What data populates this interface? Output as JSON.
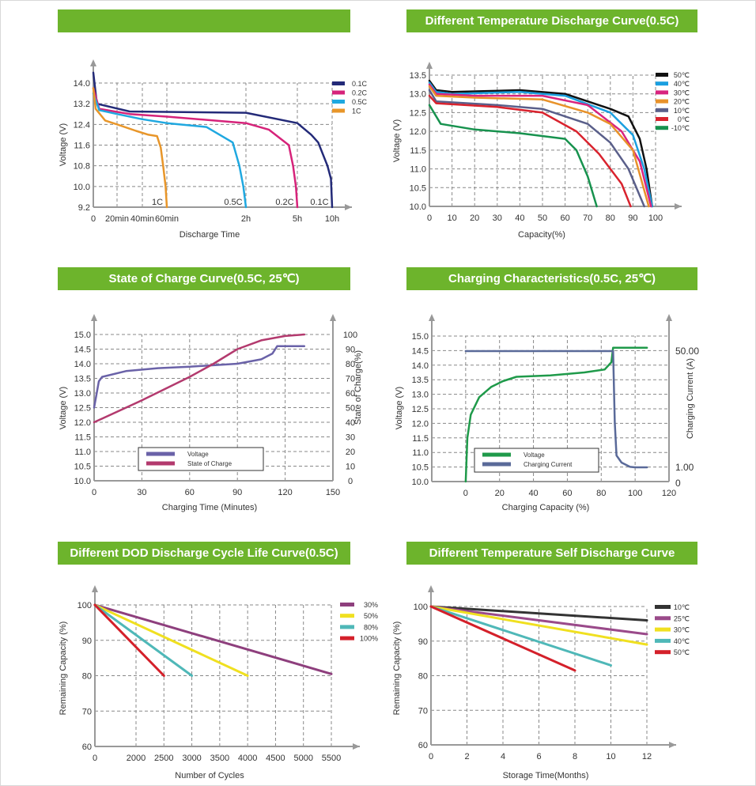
{
  "chart_data": [
    {
      "type": "line",
      "title": "",
      "xlabel": "Discharge Time",
      "ylabel": "Voltage (V)",
      "ylim": [
        9.2,
        14.0
      ],
      "x_unit": "minutes",
      "xticks": [
        {
          "v": 0,
          "label": "0"
        },
        {
          "v": 20,
          "label": "20min"
        },
        {
          "v": 40,
          "label": "40min"
        },
        {
          "v": 60,
          "label": "60min"
        },
        {
          "v": 120,
          "label": "2h"
        },
        {
          "v": 300,
          "label": "5h"
        },
        {
          "v": 600,
          "label": "10h"
        }
      ],
      "yticks": [
        9.2,
        10.0,
        10.8,
        11.6,
        12.4,
        13.2,
        14.0
      ],
      "grid": true,
      "legend": "top-right",
      "annotations": [
        {
          "text": "1C",
          "x": 60
        },
        {
          "text": "0.5C",
          "x": 120
        },
        {
          "text": "0.2C",
          "x": 300
        },
        {
          "text": "0.1C",
          "x": 600
        }
      ],
      "series": [
        {
          "name": "0.1C",
          "color": "#232a78",
          "points": [
            [
              0,
              14.4
            ],
            [
              3,
              13.2
            ],
            [
              30,
              12.9
            ],
            [
              120,
              12.85
            ],
            [
              300,
              12.45
            ],
            [
              420,
              12.0
            ],
            [
              480,
              11.7
            ],
            [
              560,
              10.8
            ],
            [
              590,
              10.3
            ],
            [
              600,
              9.2
            ]
          ]
        },
        {
          "name": "0.2C",
          "color": "#d6237a",
          "points": [
            [
              0,
              13.8
            ],
            [
              5,
              13.0
            ],
            [
              30,
              12.8
            ],
            [
              60,
              12.7
            ],
            [
              120,
              12.45
            ],
            [
              200,
              12.2
            ],
            [
              270,
              11.6
            ],
            [
              285,
              10.8
            ],
            [
              295,
              10.0
            ],
            [
              300,
              9.2
            ]
          ]
        },
        {
          "name": "0.5C",
          "color": "#1fa8e0",
          "points": [
            [
              0,
              13.6
            ],
            [
              5,
              12.95
            ],
            [
              20,
              12.8
            ],
            [
              40,
              12.6
            ],
            [
              60,
              12.45
            ],
            [
              90,
              12.3
            ],
            [
              110,
              11.7
            ],
            [
              115,
              10.8
            ],
            [
              118,
              10.0
            ],
            [
              120,
              9.2
            ]
          ]
        },
        {
          "name": "1C",
          "color": "#e8962a",
          "points": [
            [
              0,
              13.8
            ],
            [
              2,
              13.0
            ],
            [
              10,
              12.55
            ],
            [
              20,
              12.4
            ],
            [
              35,
              12.15
            ],
            [
              45,
              12.0
            ],
            [
              52,
              11.95
            ],
            [
              55,
              11.5
            ],
            [
              57,
              10.8
            ],
            [
              59,
              10.0
            ],
            [
              60,
              9.2
            ]
          ]
        }
      ]
    },
    {
      "type": "line",
      "title": "Different Temperature Discharge Curve(0.5C)",
      "xlabel": "Capacity(%)",
      "ylabel": "Voltage (V)",
      "xlim": [
        0,
        100
      ],
      "ylim": [
        10.0,
        13.5
      ],
      "xticks": [
        {
          "v": 0,
          "label": "0"
        },
        {
          "v": 10,
          "label": "10"
        },
        {
          "v": 20,
          "label": "20"
        },
        {
          "v": 30,
          "label": "30"
        },
        {
          "v": 40,
          "label": "40"
        },
        {
          "v": 50,
          "label": "50"
        },
        {
          "v": 60,
          "label": "60"
        },
        {
          "v": 70,
          "label": "70"
        },
        {
          "v": 80,
          "label": "80"
        },
        {
          "v": 90,
          "label": "90"
        },
        {
          "v": 100,
          "label": "100"
        }
      ],
      "yticks": [
        10.0,
        10.5,
        11.0,
        11.5,
        12.0,
        12.5,
        13.0,
        13.5
      ],
      "grid": true,
      "legend": "top-right",
      "series": [
        {
          "name": "50℃",
          "color": "#111111",
          "points": [
            [
              0,
              13.35
            ],
            [
              3,
              13.1
            ],
            [
              10,
              13.05
            ],
            [
              40,
              13.1
            ],
            [
              60,
              13.0
            ],
            [
              80,
              12.6
            ],
            [
              88,
              12.4
            ],
            [
              93,
              11.8
            ],
            [
              96,
              11.0
            ],
            [
              98.5,
              10.0
            ]
          ]
        },
        {
          "name": "40℃",
          "color": "#1a9fe0",
          "points": [
            [
              0,
              13.3
            ],
            [
              3,
              13.05
            ],
            [
              10,
              13.0
            ],
            [
              40,
              13.05
            ],
            [
              60,
              12.95
            ],
            [
              80,
              12.5
            ],
            [
              90,
              11.9
            ],
            [
              95,
              11.0
            ],
            [
              98.5,
              10.0
            ]
          ]
        },
        {
          "name": "30℃",
          "color": "#d8247f",
          "points": [
            [
              0,
              13.25
            ],
            [
              3,
              13.0
            ],
            [
              20,
              12.95
            ],
            [
              50,
              12.95
            ],
            [
              70,
              12.7
            ],
            [
              85,
              12.0
            ],
            [
              93,
              11.2
            ],
            [
              98,
              10.0
            ]
          ]
        },
        {
          "name": "20℃",
          "color": "#e8922a",
          "points": [
            [
              0,
              13.2
            ],
            [
              3,
              12.95
            ],
            [
              20,
              12.9
            ],
            [
              50,
              12.85
            ],
            [
              70,
              12.5
            ],
            [
              80,
              12.2
            ],
            [
              90,
              11.5
            ],
            [
              97,
              10.0
            ]
          ]
        },
        {
          "name": "10℃",
          "color": "#5a5f8a",
          "points": [
            [
              0,
              13.1
            ],
            [
              3,
              12.8
            ],
            [
              30,
              12.7
            ],
            [
              50,
              12.6
            ],
            [
              70,
              12.2
            ],
            [
              80,
              11.7
            ],
            [
              88,
              11.0
            ],
            [
              95,
              10.0
            ]
          ]
        },
        {
          "name": "0℃",
          "color": "#d9232e",
          "points": [
            [
              0,
              12.95
            ],
            [
              3,
              12.75
            ],
            [
              30,
              12.65
            ],
            [
              50,
              12.5
            ],
            [
              65,
              12.0
            ],
            [
              75,
              11.4
            ],
            [
              85,
              10.6
            ],
            [
              89,
              10.0
            ]
          ]
        },
        {
          "name": "-10℃",
          "color": "#17924e",
          "points": [
            [
              0,
              12.7
            ],
            [
              5,
              12.2
            ],
            [
              20,
              12.05
            ],
            [
              40,
              11.95
            ],
            [
              60,
              11.8
            ],
            [
              65,
              11.5
            ],
            [
              70,
              10.8
            ],
            [
              74,
              10.0
            ]
          ]
        }
      ]
    },
    {
      "type": "line",
      "title": "State of Charge Curve(0.5C, 25℃)",
      "xlabel": "Charging Time (Minutes)",
      "ylabel": "Voltage (V)",
      "y2label": "State of Charge(%)",
      "xlim": [
        0,
        150
      ],
      "ylim": [
        10.0,
        15.0
      ],
      "y2lim": [
        0,
        100
      ],
      "xticks": [
        {
          "v": 0,
          "label": "0"
        },
        {
          "v": 30,
          "label": "30"
        },
        {
          "v": 60,
          "label": "60"
        },
        {
          "v": 90,
          "label": "90"
        },
        {
          "v": 120,
          "label": "120"
        },
        {
          "v": 150,
          "label": "150"
        }
      ],
      "yticks": [
        10.0,
        10.5,
        11.0,
        11.5,
        12.0,
        12.5,
        13.0,
        13.5,
        14.0,
        14.5,
        15.0
      ],
      "y2ticks": [
        0,
        10,
        20,
        30,
        40,
        50,
        60,
        70,
        80,
        90,
        100
      ],
      "grid": true,
      "legend": "bottom-center",
      "series": [
        {
          "name": "Voltage",
          "axis": "y",
          "color": "#6a62a8",
          "points": [
            [
              0,
              12.5
            ],
            [
              3,
              13.4
            ],
            [
              5,
              13.55
            ],
            [
              20,
              13.75
            ],
            [
              40,
              13.85
            ],
            [
              60,
              13.9
            ],
            [
              90,
              14.0
            ],
            [
              105,
              14.15
            ],
            [
              112,
              14.35
            ],
            [
              115,
              14.6
            ],
            [
              132,
              14.6
            ]
          ]
        },
        {
          "name": "State of Charge",
          "axis": "y2",
          "color": "#b33a6e",
          "points": [
            [
              0,
              40
            ],
            [
              30,
              55
            ],
            [
              60,
              71
            ],
            [
              75,
              80
            ],
            [
              90,
              90
            ],
            [
              105,
              96
            ],
            [
              120,
              99
            ],
            [
              132,
              100
            ]
          ]
        }
      ]
    },
    {
      "type": "line",
      "title": "Charging Characteristics(0.5C, 25℃)",
      "xlabel": "Charging Capacity (%)",
      "ylabel": "Voltage (V)",
      "y2label": "Charging Current (A)",
      "xlim": [
        -20,
        120
      ],
      "ylim": [
        10.0,
        15.0
      ],
      "xticks": [
        {
          "v": 0,
          "label": "0"
        },
        {
          "v": 20,
          "label": "20"
        },
        {
          "v": 40,
          "label": "40"
        },
        {
          "v": 60,
          "label": "60"
        },
        {
          "v": 80,
          "label": "80"
        },
        {
          "v": 100,
          "label": "100"
        },
        {
          "v": 120,
          "label": "120"
        }
      ],
      "yticks": [
        10.0,
        10.5,
        11.0,
        11.5,
        12.0,
        12.5,
        13.0,
        13.5,
        14.0,
        14.5,
        15.0
      ],
      "y2ticks": [
        {
          "v": 0,
          "label": "0"
        },
        {
          "v": 1,
          "label": "1.00"
        },
        {
          "v": 50,
          "label": "50.00"
        }
      ],
      "grid": true,
      "legend": "bottom-center",
      "series": [
        {
          "name": "Voltage",
          "axis": "y",
          "color": "#1f9a4a",
          "points": [
            [
              0,
              10.0
            ],
            [
              1,
              11.5
            ],
            [
              3,
              12.3
            ],
            [
              8,
              12.9
            ],
            [
              15,
              13.25
            ],
            [
              22,
              13.45
            ],
            [
              30,
              13.6
            ],
            [
              50,
              13.65
            ],
            [
              70,
              13.75
            ],
            [
              82,
              13.85
            ],
            [
              86,
              14.1
            ],
            [
              87,
              14.6
            ],
            [
              107,
              14.6
            ]
          ]
        },
        {
          "name": "Charging Current",
          "axis": "y2",
          "color": "#5a6a99",
          "points": [
            [
              0,
              50
            ],
            [
              87,
              50
            ],
            [
              88,
              20
            ],
            [
              89,
              6
            ],
            [
              92,
              3
            ],
            [
              97,
              1.2
            ],
            [
              100,
              1
            ],
            [
              107,
              1
            ]
          ]
        }
      ]
    },
    {
      "type": "line",
      "title": "Different DOD Discharge Cycle Life Curve(0.5C)",
      "xlabel": "Number of Cycles",
      "ylabel": "Remaining Capacity (%)",
      "ylim": [
        60,
        100
      ],
      "xticks": [
        {
          "v": 0,
          "label": "0"
        },
        {
          "v": 2000,
          "label": "2000"
        },
        {
          "v": 2500,
          "label": "2500"
        },
        {
          "v": 3000,
          "label": "3000"
        },
        {
          "v": 3500,
          "label": "3500"
        },
        {
          "v": 4000,
          "label": "4000"
        },
        {
          "v": 4500,
          "label": "4500"
        },
        {
          "v": 5000,
          "label": "5000"
        },
        {
          "v": 5500,
          "label": "5500"
        }
      ],
      "yticks": [
        60,
        70,
        80,
        90,
        100
      ],
      "grid": true,
      "legend": "top-right",
      "series": [
        {
          "name": "30%",
          "color": "#8e3f7d",
          "points": [
            [
              0,
              100
            ],
            [
              5500,
              80.5
            ]
          ]
        },
        {
          "name": "50%",
          "color": "#f0e020",
          "points": [
            [
              0,
              100
            ],
            [
              4000,
              80
            ]
          ]
        },
        {
          "name": "80%",
          "color": "#4fb8b8",
          "points": [
            [
              0,
              100
            ],
            [
              3000,
              80
            ]
          ]
        },
        {
          "name": "100%",
          "color": "#d4202a",
          "points": [
            [
              0,
              100
            ],
            [
              2500,
              80
            ]
          ]
        }
      ]
    },
    {
      "type": "line",
      "title": "Different Temperature Self Discharge Curve",
      "xlabel": "Storage Time(Months)",
      "ylabel": "Remaining Capacity (%)",
      "xlim": [
        0,
        12
      ],
      "ylim": [
        60,
        100
      ],
      "xticks": [
        {
          "v": 0,
          "label": "0"
        },
        {
          "v": 2,
          "label": "2"
        },
        {
          "v": 4,
          "label": "4"
        },
        {
          "v": 6,
          "label": "6"
        },
        {
          "v": 8,
          "label": "8"
        },
        {
          "v": 10,
          "label": "10"
        },
        {
          "v": 12,
          "label": "12"
        }
      ],
      "yticks": [
        60,
        70,
        80,
        90,
        100
      ],
      "grid": true,
      "legend": "top-right",
      "series": [
        {
          "name": "10℃",
          "color": "#333333",
          "points": [
            [
              0,
              100
            ],
            [
              12,
              96
            ]
          ]
        },
        {
          "name": "25℃",
          "color": "#9a4a8a",
          "points": [
            [
              0,
              100
            ],
            [
              12,
              92
            ]
          ]
        },
        {
          "name": "30℃",
          "color": "#f0e020",
          "points": [
            [
              0,
              100
            ],
            [
              12,
              89
            ]
          ]
        },
        {
          "name": "40℃",
          "color": "#4fb8b8",
          "points": [
            [
              0,
              100
            ],
            [
              10,
              83
            ]
          ]
        },
        {
          "name": "50℃",
          "color": "#d4202a",
          "points": [
            [
              0,
              100
            ],
            [
              8,
              81.5
            ]
          ]
        }
      ]
    }
  ],
  "header_color": "#6db42c"
}
